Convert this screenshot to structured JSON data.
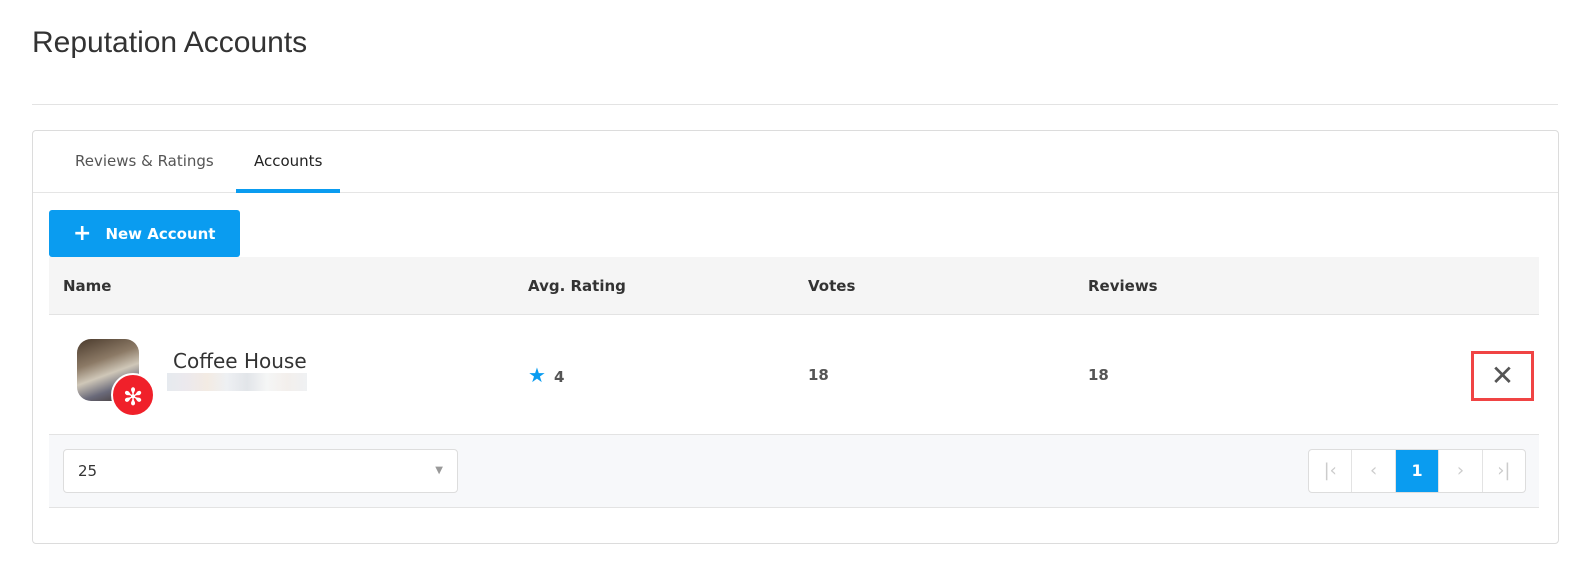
{
  "page": {
    "title": "Reputation Accounts"
  },
  "tabs": [
    {
      "label": "Reviews & Ratings",
      "active": false
    },
    {
      "label": "Accounts",
      "active": true
    }
  ],
  "toolbar": {
    "new_account_label": "New Account",
    "new_account_icon": "+"
  },
  "table": {
    "columns": [
      "Name",
      "Avg. Rating",
      "Votes",
      "Reviews"
    ],
    "rows": [
      {
        "name": "Coffee House",
        "source": "yelp",
        "avg_rating": "4",
        "votes": "18",
        "reviews": "18",
        "remove_icon": "✕"
      }
    ]
  },
  "footer": {
    "page_size": "25",
    "pagination": {
      "first": "|‹",
      "prev": "‹",
      "current": "1",
      "next": "›",
      "last": "›|"
    }
  },
  "colors": {
    "accent": "#0a9cf0",
    "yelp": "#f0202a",
    "highlight": "#f04444"
  }
}
